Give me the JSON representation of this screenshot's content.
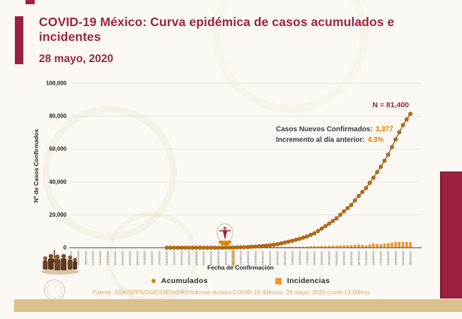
{
  "page": {
    "title": "COVID-19 México: Curva epidémica de casos acumulados e incidentes",
    "date": "28 mayo, 2020",
    "footer": "Fuente: SSA/SPPS/DGE/DIE/InDRE/Informe técnico.COVID-19 /México- 28 mayo, 2020 (corte 13:00hrs)"
  },
  "annotations": {
    "total_label": "N = 81,400",
    "new_cases_label": "Casos Nuevos Confirmados:",
    "new_cases_value": "3,377",
    "increase_label": "Incremento al día anterior:",
    "increase_value": "4.3%"
  },
  "legend": {
    "acumulados": "Acumulados",
    "incidencias": "Incidencias"
  },
  "colors": {
    "maroon": "#9d2241",
    "marker_orange": "#e8890b",
    "marker_ring": "#7a3c00",
    "bar_orange": "#f7941d",
    "gold_bar": "#dcc18c",
    "footer_text": "#d2a167",
    "grid": "#dcdcdc"
  },
  "chart_data": {
    "type": "line+bar",
    "title": "",
    "xlabel": "Fecha de Confirmación",
    "ylabel": "Nº de Casos Confirmados",
    "ylim": [
      0,
      100000
    ],
    "grid": true,
    "legend_position": "bottom",
    "y_ticks": [
      0,
      20000,
      40000,
      60000,
      80000,
      100000
    ],
    "y_tick_labels": [
      "0",
      "20,000",
      "40,000",
      "60,000",
      "80,000",
      "100,000"
    ],
    "categories": [
      "12/01/2020",
      "15/01/2020",
      "18/01/2020",
      "21/01/2020",
      "24/01/2020",
      "27/01/2020",
      "30/01/2020",
      "02/02/2020",
      "05/02/2020",
      "08/02/2020",
      "11/02/2020",
      "14/02/2020",
      "17/02/2020",
      "20/02/2020",
      "23/02/2020",
      "26/02/2020",
      "29/02/2020",
      "03/03/2020",
      "06/03/2020",
      "09/03/2020",
      "12/03/2020",
      "15/03/2020",
      "18/03/2020",
      "21/03/2020",
      "24/03/2020",
      "27/03/2020",
      "30/03/2020",
      "02/04/2020",
      "05/04/2020",
      "08/04/2020",
      "11/04/2020",
      "14/04/2020",
      "17/04/2020",
      "20/04/2020",
      "23/04/2020",
      "26/04/2020",
      "29/04/2020",
      "02/05/2020",
      "05/05/2020",
      "08/05/2020",
      "11/05/2020",
      "14/05/2020",
      "17/05/2020",
      "20/05/2020",
      "23/05/2020",
      "26/05/2020",
      "28/05/2020"
    ],
    "series": [
      {
        "name": "Acumulados",
        "type": "line",
        "color": "#e8890b",
        "values": [
          0,
          0,
          0,
          0,
          0,
          0,
          0,
          0,
          0,
          0,
          0,
          0,
          0,
          0,
          0,
          0,
          4,
          5,
          6,
          7,
          15,
          41,
          118,
          251,
          405,
          717,
          1094,
          1510,
          2143,
          3181,
          4219,
          5399,
          6875,
          8772,
          11633,
          14677,
          17799,
          22088,
          26025,
          31522,
          36327,
          42595,
          49219,
          56594,
          65856,
          74560,
          81400
        ]
      },
      {
        "name": "Incidencias",
        "type": "bar",
        "color": "#f7941d",
        "values": [
          0,
          0,
          0,
          0,
          0,
          0,
          0,
          0,
          0,
          0,
          0,
          0,
          0,
          0,
          0,
          0,
          1,
          1,
          1,
          1,
          3,
          10,
          25,
          50,
          65,
          110,
          145,
          163,
          253,
          346,
          375,
          417,
          578,
          764,
          970,
          1015,
          1223,
          1349,
          1434,
          1906,
          1305,
          2409,
          2075,
          2713,
          3329,
          3455,
          3377
        ]
      }
    ],
    "total_n": 81400,
    "markers_from_index": 13,
    "highlight_index": 22
  }
}
